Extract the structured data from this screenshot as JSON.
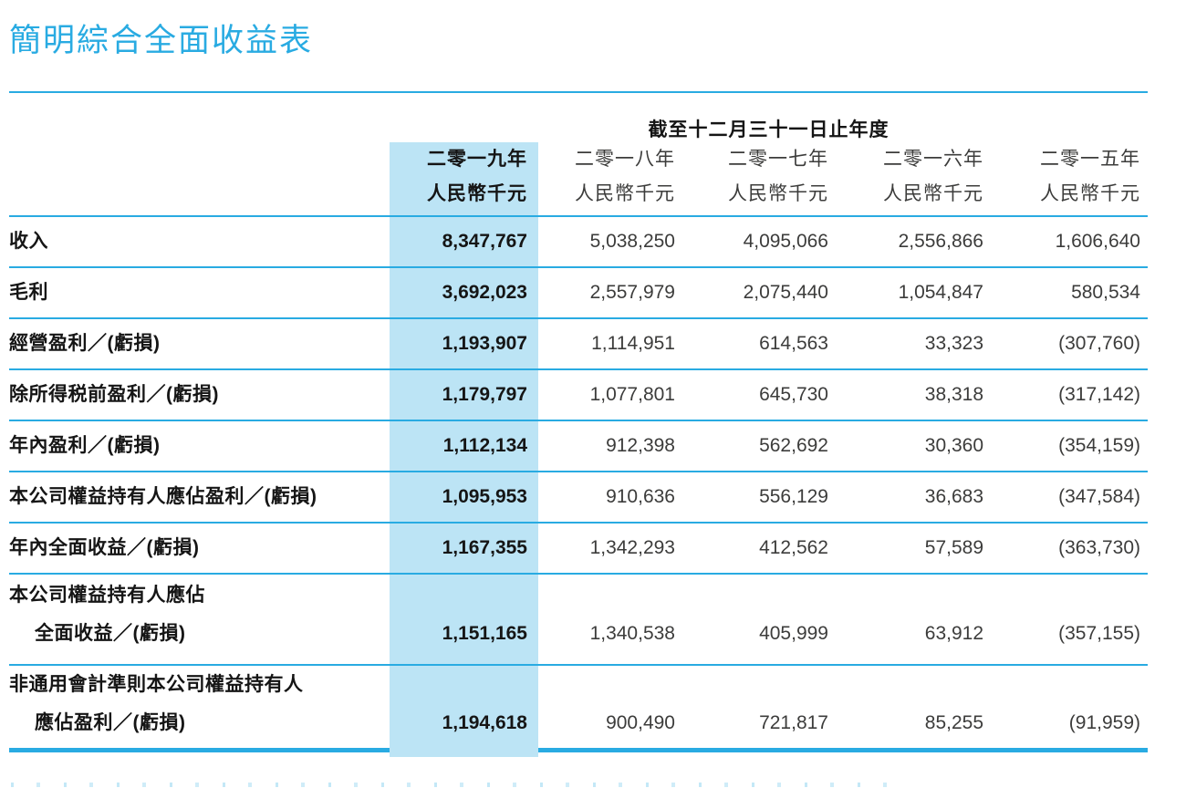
{
  "page_title": "簡明綜合全面收益表",
  "table": {
    "period_header": "截至十二月三十一日止年度",
    "columns": [
      {
        "year": "二零一九年",
        "unit": "人民幣千元",
        "highlight": true
      },
      {
        "year": "二零一八年",
        "unit": "人民幣千元",
        "highlight": false
      },
      {
        "year": "二零一七年",
        "unit": "人民幣千元",
        "highlight": false
      },
      {
        "year": "二零一六年",
        "unit": "人民幣千元",
        "highlight": false
      },
      {
        "year": "二零一五年",
        "unit": "人民幣千元",
        "highlight": false
      }
    ],
    "rows": [
      {
        "label_lines": [
          "收入"
        ],
        "values": [
          "8,347,767",
          "5,038,250",
          "4,095,066",
          "2,556,866",
          "1,606,640"
        ]
      },
      {
        "label_lines": [
          "毛利"
        ],
        "values": [
          "3,692,023",
          "2,557,979",
          "2,075,440",
          "1,054,847",
          "580,534"
        ]
      },
      {
        "label_lines": [
          "經營盈利／(虧損)"
        ],
        "values": [
          "1,193,907",
          "1,114,951",
          "614,563",
          "33,323",
          "(307,760)"
        ]
      },
      {
        "label_lines": [
          "除所得税前盈利／(虧損)"
        ],
        "values": [
          "1,179,797",
          "1,077,801",
          "645,730",
          "38,318",
          "(317,142)"
        ]
      },
      {
        "label_lines": [
          "年內盈利／(虧損)"
        ],
        "values": [
          "1,112,134",
          "912,398",
          "562,692",
          "30,360",
          "(354,159)"
        ]
      },
      {
        "label_lines": [
          "本公司權益持有人應佔盈利／(虧損)"
        ],
        "values": [
          "1,095,953",
          "910,636",
          "556,129",
          "36,683",
          "(347,584)"
        ]
      },
      {
        "label_lines": [
          "年內全面收益／(虧損)"
        ],
        "values": [
          "1,167,355",
          "1,342,293",
          "412,562",
          "57,589",
          "(363,730)"
        ]
      },
      {
        "label_lines": [
          "本公司權益持有人應佔",
          "全面收益／(虧損)"
        ],
        "values": [
          "1,151,165",
          "1,340,538",
          "405,999",
          "63,912",
          "(357,155)"
        ]
      },
      {
        "label_lines": [
          "非通用會計準則本公司權益持有人",
          "應佔盈利／(虧損)"
        ],
        "values": [
          "1,194,618",
          "900,490",
          "721,817",
          "85,255",
          "(91,959)"
        ]
      }
    ]
  },
  "colors": {
    "accent": "#29ABE2",
    "highlight_bg": "#BCE4F5",
    "text_regular": "#3C3C3B",
    "text_strong": "#151515"
  }
}
